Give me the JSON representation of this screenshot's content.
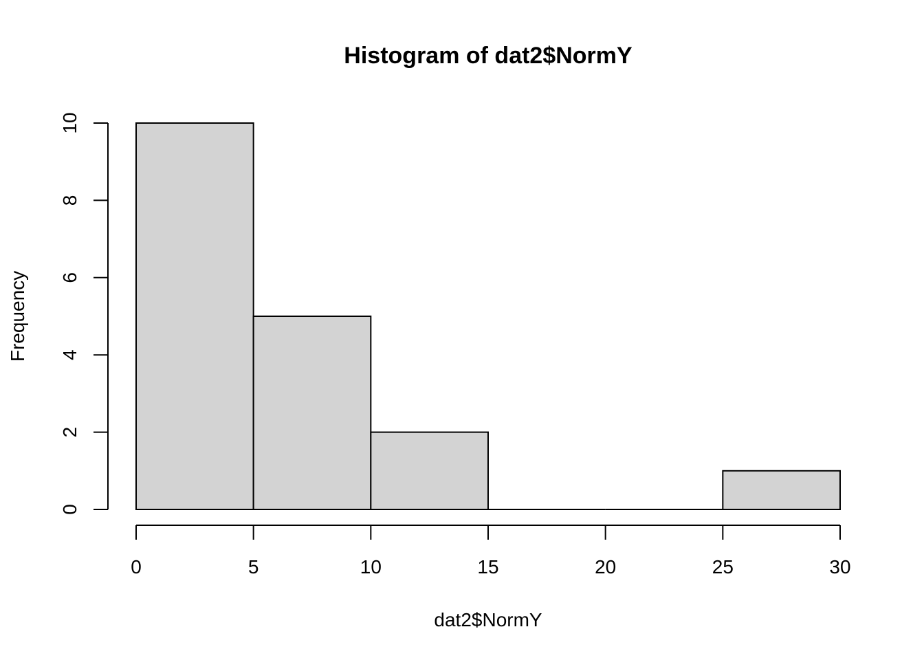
{
  "chart_data": {
    "type": "bar",
    "title": "Histogram of dat2$NormY",
    "xlabel": "dat2$NormY",
    "ylabel": "Frequency",
    "bins": [
      {
        "x0": 0,
        "x1": 5,
        "count": 10
      },
      {
        "x0": 5,
        "x1": 10,
        "count": 5
      },
      {
        "x0": 10,
        "x1": 15,
        "count": 2
      },
      {
        "x0": 15,
        "x1": 20,
        "count": 0
      },
      {
        "x0": 20,
        "x1": 25,
        "count": 0
      },
      {
        "x0": 25,
        "x1": 30,
        "count": 1
      }
    ],
    "xlim": [
      0,
      30
    ],
    "ylim": [
      0,
      10
    ],
    "x_ticks": [
      0,
      5,
      10,
      15,
      20,
      25,
      30
    ],
    "y_ticks": [
      0,
      2,
      4,
      6,
      8,
      10
    ],
    "grid": false,
    "colors": {
      "bar_fill": "#d3d3d3",
      "bar_stroke": "#000000"
    }
  }
}
